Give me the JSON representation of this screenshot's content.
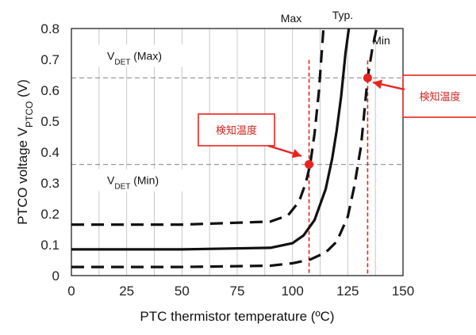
{
  "chart_data": {
    "type": "line",
    "title": "",
    "xlabel": "PTC thermistor temperature (ºC)",
    "ylabel": {
      "main": "PTCO voltage V",
      "sub": "PTCO",
      "unit": " (V)"
    },
    "xlim": [
      0,
      150
    ],
    "ylim": [
      0,
      0.8
    ],
    "xticks": [
      "0",
      "25",
      "50",
      "75",
      "100",
      "125",
      "150"
    ],
    "yticks": [
      "0",
      "0.1",
      "0.2",
      "0.3",
      "0.4",
      "0.5",
      "0.6",
      "0.7",
      "0.8"
    ],
    "grid": {
      "vertical": true,
      "horizontal": false
    },
    "series": [
      {
        "name": "Max",
        "style": "dashed",
        "x": [
          0,
          50,
          90,
          98,
          103,
          106,
          108,
          110,
          112,
          114
        ],
        "y": [
          0.165,
          0.165,
          0.175,
          0.195,
          0.24,
          0.3,
          0.36,
          0.46,
          0.6,
          0.8
        ]
      },
      {
        "name": "Typ.",
        "style": "solid",
        "x": [
          0,
          50,
          90,
          100,
          105,
          110,
          115,
          118,
          120,
          122,
          124,
          125.5
        ],
        "y": [
          0.085,
          0.085,
          0.09,
          0.105,
          0.13,
          0.18,
          0.28,
          0.38,
          0.47,
          0.58,
          0.72,
          0.8
        ]
      },
      {
        "name": "Min",
        "style": "dashed",
        "x": [
          0,
          50,
          90,
          100,
          108,
          115,
          120,
          125,
          128,
          131,
          134,
          136,
          138
        ],
        "y": [
          0.028,
          0.028,
          0.032,
          0.04,
          0.052,
          0.075,
          0.11,
          0.19,
          0.29,
          0.42,
          0.64,
          0.73,
          0.8
        ]
      }
    ],
    "thresholds": [
      {
        "label": "V",
        "sub": "DET",
        "suffix": " (Max)",
        "y": 0.64
      },
      {
        "label": "V",
        "sub": "DET",
        "suffix": " (Min)",
        "y": 0.36
      }
    ],
    "detection_points": [
      {
        "x": 107.5,
        "y": 0.36,
        "callout": "検知温度"
      },
      {
        "x": 134,
        "y": 0.64,
        "callout": "検知温度"
      }
    ],
    "colors": {
      "curve": "#111111",
      "marker": "#e8241f",
      "threshold": "#9a9a9a",
      "grid": "#c8c8c8"
    }
  }
}
